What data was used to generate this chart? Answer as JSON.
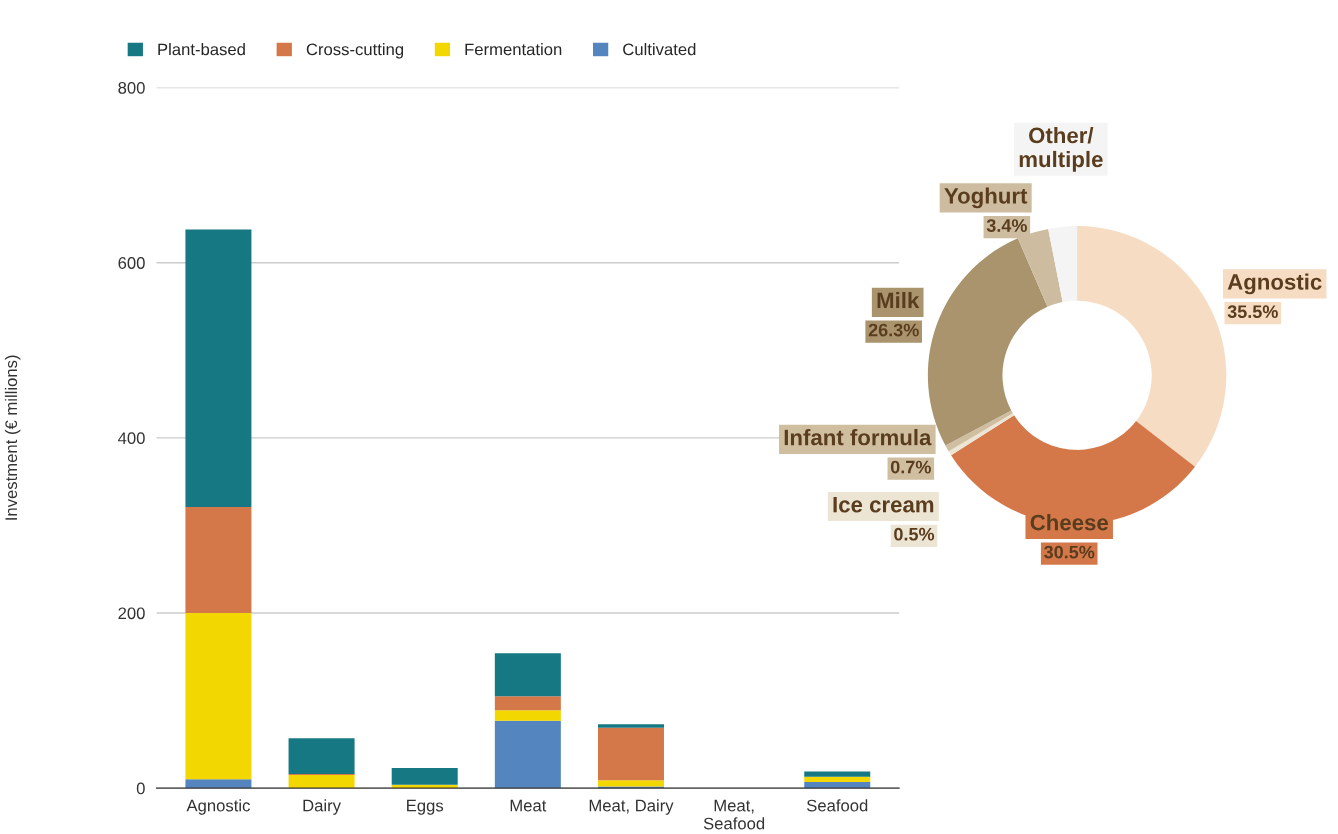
{
  "chart_data": [
    {
      "type": "bar",
      "stacked": true,
      "ylabel": "Investment (€ millions)",
      "categories": [
        "Agnostic",
        "Dairy",
        "Eggs",
        "Meat",
        "Meat, Dairy",
        "Meat,\nSeafood",
        "Seafood"
      ],
      "series": [
        {
          "name": "Cultivated",
          "color": "#5585bf",
          "values": [
            10,
            0,
            0,
            77,
            2,
            0,
            7
          ]
        },
        {
          "name": "Fermentation",
          "color": "#f3d700",
          "values": [
            190,
            15,
            4,
            12,
            7,
            0,
            6
          ]
        },
        {
          "name": "Cross-cutting",
          "color": "#d4784a",
          "values": [
            121,
            1,
            0,
            16,
            60,
            0,
            0
          ]
        },
        {
          "name": "Plant-based",
          "color": "#167883",
          "values": [
            317,
            41,
            19,
            49,
            4,
            0,
            6
          ]
        }
      ],
      "ylim": [
        0,
        800
      ],
      "yticks": [
        0,
        200,
        400,
        600,
        800
      ],
      "grid": "y",
      "legend": "top left"
    },
    {
      "type": "donut",
      "categories": [
        "Agnostic",
        "Cheese",
        "Ice cream",
        "Infant formula",
        "Milk",
        "Yoghurt",
        "Other/\nmultiple"
      ],
      "values": [
        35.5,
        30.5,
        0.5,
        0.7,
        26.3,
        3.4,
        3.1
      ],
      "value_labels": [
        "35.5%",
        "30.5%",
        "0.5%",
        "0.7%",
        "26.3%",
        "3.4%",
        null
      ],
      "colors": [
        "#f5dcc2",
        "#d4784a",
        "#ede5d3",
        "#cfbea0",
        "#aa946d",
        "#cdbca0",
        "#f4f4f4"
      ]
    }
  ]
}
